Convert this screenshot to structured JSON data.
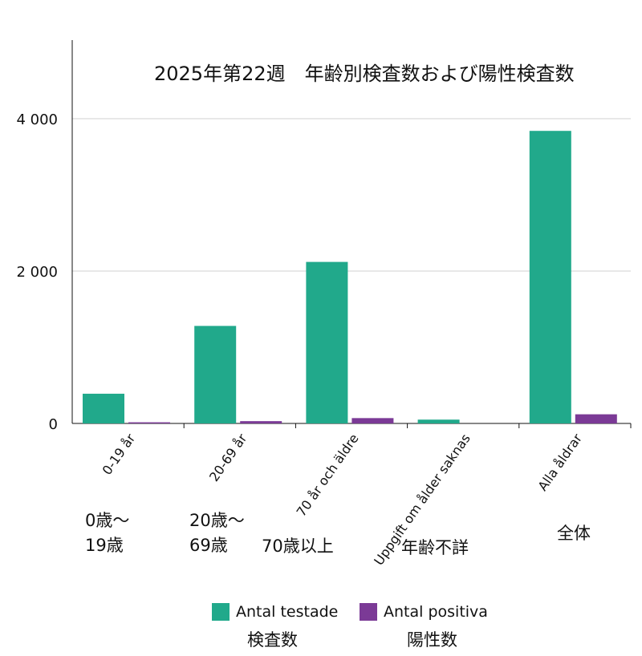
{
  "chart_data": {
    "type": "bar",
    "title": "2025年第22週　年齢別検査数および陽性検査数",
    "categories": [
      "0-19 år",
      "20-69 år",
      "70 år och äldre",
      "Uppgift om ålder saknas",
      "Alla åldrar"
    ],
    "categories_ja": [
      "0歳〜\n19歳",
      "20歳〜\n69歳",
      "70歳以上",
      "年齢不詳",
      "全体"
    ],
    "series": [
      {
        "name": "Antal testade",
        "name_ja": "検査数",
        "color": "#21a98b",
        "values": [
          390,
          1280,
          2120,
          50,
          3840
        ]
      },
      {
        "name": "Antal positiva",
        "name_ja": "陽性数",
        "color": "#7b3a96",
        "values": [
          15,
          30,
          70,
          0,
          120
        ]
      }
    ],
    "yticks": [
      "0",
      "2 000",
      "4 000"
    ],
    "ylim": [
      0,
      5000
    ],
    "grid": true,
    "legend_position": "bottom"
  }
}
